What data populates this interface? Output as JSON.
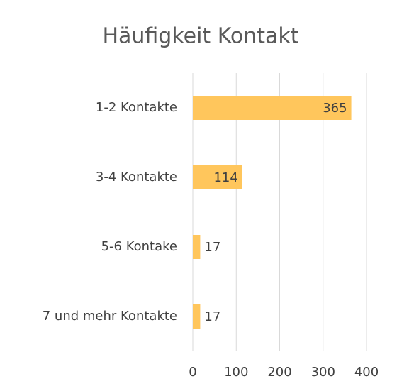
{
  "chart_data": {
    "type": "bar",
    "orientation": "horizontal",
    "title": "Häufigkeit Kontakt",
    "categories": [
      "1-2 Kontakte",
      "3-4 Kontakte",
      "5-6 Kontake",
      "7 und mehr Kontakte"
    ],
    "values": [
      365,
      114,
      17,
      17
    ],
    "color": "#ffc65c",
    "xlim": [
      0,
      400
    ],
    "xticks": [
      0,
      100,
      200,
      300,
      400
    ],
    "grid": true
  }
}
